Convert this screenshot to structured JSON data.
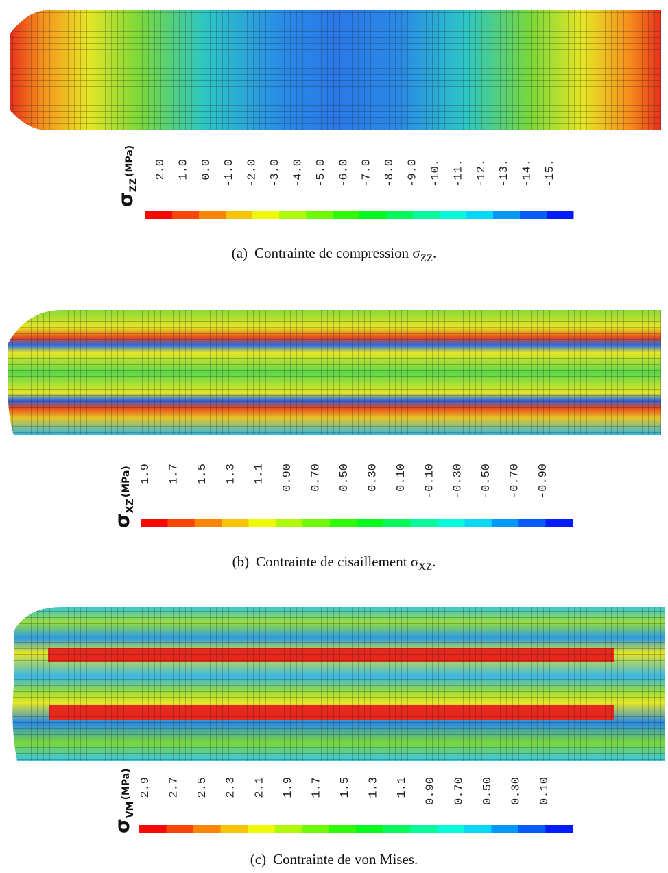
{
  "panels": [
    {
      "symbol": "σ",
      "subscript": "ZZ",
      "unit": "(MPa)",
      "labels": [
        "2.0",
        "1.0",
        "0.0",
        "-1.0",
        "-2.0",
        "-3.0",
        "-4.0",
        "-5.0",
        "-6.0",
        "-7.0",
        "-8.0",
        "-9.0",
        "-10.",
        "-11.",
        "-12.",
        "-13.",
        "-14.",
        "-15."
      ],
      "caption": {
        "label": "(a)",
        "text": "Contrainte de compression σ",
        "subscript": "ZZ",
        "end": "."
      }
    },
    {
      "symbol": "σ",
      "subscript": "XZ",
      "unit": "(MPa)",
      "labels": [
        "1.9",
        "1.7",
        "1.5",
        "1.3",
        "1.1",
        "0.90",
        "0.70",
        "0.50",
        "0.30",
        "0.10",
        "-0.10",
        "-0.30",
        "-0.50",
        "-0.70",
        "-0.90"
      ],
      "caption": {
        "label": "(b)",
        "text": "Contrainte de cisaillement σ",
        "subscript": "XZ",
        "end": "."
      }
    },
    {
      "symbol": "σ",
      "subscript": "VM",
      "unit": "(MPa)",
      "labels": [
        "2.9",
        "2.7",
        "2.5",
        "2.3",
        "2.1",
        "1.9",
        "1.7",
        "1.5",
        "1.3",
        "1.1",
        "0.90",
        "0.70",
        "0.50",
        "0.30",
        "0.10"
      ],
      "caption": {
        "label": "(c)",
        "text": "Contrainte de von Mises."
      }
    }
  ]
}
